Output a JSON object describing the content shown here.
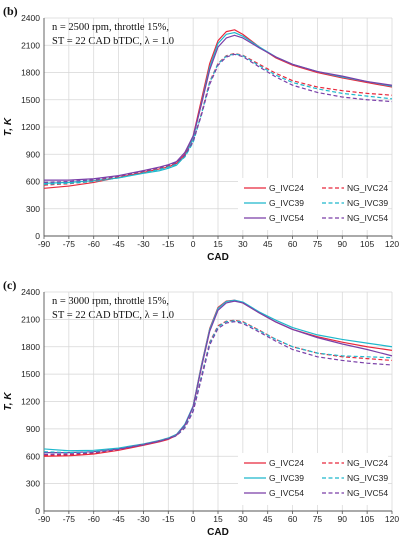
{
  "chart_data": [
    {
      "type": "line",
      "panel_label": "(b)",
      "info_lines": [
        "n = 2500 rpm, throttle 15%,",
        "ST = 22 CAD bTDC, λ = 1.0"
      ],
      "info_italic_prefix": "n",
      "info_lambda_symbol": "λ",
      "xlabel": "CAD",
      "ylabel": "T, K",
      "xlim": [
        -90,
        120
      ],
      "ylim": [
        0,
        2400
      ],
      "xticks": [
        -90,
        -75,
        -60,
        -45,
        -30,
        -15,
        0,
        15,
        30,
        45,
        60,
        75,
        90,
        105,
        120
      ],
      "yticks": [
        0,
        300,
        600,
        900,
        1200,
        1500,
        1800,
        2100,
        2400
      ],
      "grid": true,
      "legend_position": "bottom-right",
      "series": [
        {
          "name": "G_IVC24",
          "color": "#e8283c",
          "dash": "solid",
          "x": [
            -90,
            -75,
            -60,
            -45,
            -30,
            -20,
            -15,
            -10,
            -5,
            0,
            5,
            10,
            15,
            20,
            25,
            30,
            40,
            50,
            60,
            75,
            90,
            105,
            120
          ],
          "y": [
            525,
            550,
            590,
            645,
            700,
            740,
            760,
            800,
            900,
            1100,
            1500,
            1900,
            2150,
            2250,
            2270,
            2220,
            2080,
            1960,
            1880,
            1800,
            1740,
            1690,
            1640
          ]
        },
        {
          "name": "G_IVC39",
          "color": "#1fb8cc",
          "dash": "solid",
          "x": [
            -90,
            -75,
            -60,
            -45,
            -30,
            -20,
            -15,
            -10,
            -5,
            0,
            5,
            10,
            15,
            20,
            25,
            30,
            40,
            50,
            60,
            75,
            90,
            105,
            120
          ],
          "y": [
            580,
            590,
            610,
            640,
            690,
            720,
            745,
            780,
            880,
            1070,
            1460,
            1860,
            2120,
            2220,
            2240,
            2200,
            2080,
            1970,
            1890,
            1810,
            1750,
            1700,
            1650
          ]
        },
        {
          "name": "G_IVC54",
          "color": "#7a3fa8",
          "dash": "solid",
          "x": [
            -90,
            -75,
            -60,
            -45,
            -30,
            -20,
            -15,
            -10,
            -5,
            0,
            5,
            10,
            15,
            20,
            25,
            30,
            40,
            50,
            60,
            75,
            90,
            105,
            120
          ],
          "y": [
            615,
            615,
            630,
            665,
            720,
            760,
            785,
            820,
            920,
            1100,
            1450,
            1830,
            2080,
            2180,
            2210,
            2180,
            2070,
            1970,
            1890,
            1810,
            1760,
            1700,
            1660
          ]
        },
        {
          "name": "NG_IVC24",
          "color": "#e8283c",
          "dash": "dashed",
          "x": [
            -90,
            -75,
            -60,
            -45,
            -30,
            -20,
            -15,
            -10,
            -5,
            0,
            5,
            10,
            15,
            20,
            25,
            30,
            40,
            50,
            60,
            75,
            90,
            105,
            120
          ],
          "y": [
            560,
            575,
            605,
            650,
            705,
            745,
            770,
            800,
            880,
            1040,
            1350,
            1700,
            1900,
            1985,
            2010,
            1990,
            1890,
            1790,
            1710,
            1640,
            1600,
            1570,
            1550
          ]
        },
        {
          "name": "NG_IVC39",
          "color": "#1fb8cc",
          "dash": "dashed",
          "x": [
            -90,
            -75,
            -60,
            -45,
            -30,
            -20,
            -15,
            -10,
            -5,
            0,
            5,
            10,
            15,
            20,
            25,
            30,
            40,
            50,
            60,
            75,
            90,
            105,
            120
          ],
          "y": [
            570,
            580,
            600,
            640,
            695,
            735,
            760,
            790,
            870,
            1030,
            1340,
            1690,
            1895,
            1980,
            2005,
            1985,
            1875,
            1770,
            1690,
            1620,
            1570,
            1540,
            1510
          ]
        },
        {
          "name": "NG_IVC54",
          "color": "#7a3fa8",
          "dash": "dashed",
          "x": [
            -90,
            -75,
            -60,
            -45,
            -30,
            -20,
            -15,
            -10,
            -5,
            0,
            5,
            10,
            15,
            20,
            25,
            30,
            40,
            50,
            60,
            75,
            90,
            105,
            120
          ],
          "y": [
            590,
            600,
            620,
            660,
            715,
            755,
            780,
            810,
            890,
            1040,
            1330,
            1670,
            1880,
            1970,
            2000,
            1975,
            1860,
            1750,
            1660,
            1580,
            1530,
            1500,
            1480
          ]
        }
      ]
    },
    {
      "type": "line",
      "panel_label": "(c)",
      "info_lines": [
        "n = 3000 rpm, throttle 15%,",
        "ST = 22 CAD bTDC, λ = 1.0"
      ],
      "info_italic_prefix": "n",
      "info_lambda_symbol": "λ",
      "xlabel": "CAD",
      "ylabel": "T, K",
      "xlim": [
        -90,
        120
      ],
      "ylim": [
        0,
        2400
      ],
      "xticks": [
        -90,
        -75,
        -60,
        -45,
        -30,
        -15,
        0,
        15,
        30,
        45,
        60,
        75,
        90,
        105,
        120
      ],
      "yticks": [
        0,
        300,
        600,
        900,
        1200,
        1500,
        1800,
        2100,
        2400
      ],
      "grid": true,
      "legend_position": "bottom-right",
      "series": [
        {
          "name": "G_IVC24",
          "color": "#e8283c",
          "dash": "solid",
          "x": [
            -90,
            -75,
            -60,
            -45,
            -30,
            -20,
            -15,
            -10,
            -5,
            0,
            5,
            10,
            15,
            20,
            25,
            30,
            40,
            50,
            60,
            75,
            90,
            105,
            120
          ],
          "y": [
            600,
            605,
            625,
            665,
            720,
            760,
            785,
            830,
            940,
            1150,
            1600,
            2000,
            2230,
            2300,
            2310,
            2280,
            2170,
            2070,
            1990,
            1910,
            1850,
            1800,
            1760
          ]
        },
        {
          "name": "G_IVC39",
          "color": "#1fb8cc",
          "dash": "solid",
          "x": [
            -90,
            -75,
            -60,
            -45,
            -30,
            -20,
            -15,
            -10,
            -5,
            0,
            5,
            10,
            15,
            20,
            25,
            30,
            40,
            50,
            60,
            75,
            90,
            105,
            120
          ],
          "y": [
            680,
            660,
            665,
            690,
            735,
            775,
            800,
            840,
            950,
            1150,
            1590,
            1990,
            2220,
            2295,
            2310,
            2290,
            2180,
            2090,
            2010,
            1930,
            1880,
            1840,
            1800
          ]
        },
        {
          "name": "G_IVC54",
          "color": "#7a3fa8",
          "dash": "solid",
          "x": [
            -90,
            -75,
            -60,
            -45,
            -30,
            -20,
            -15,
            -10,
            -5,
            0,
            5,
            10,
            15,
            20,
            25,
            30,
            40,
            50,
            60,
            75,
            90,
            105,
            120
          ],
          "y": [
            640,
            640,
            650,
            680,
            730,
            770,
            795,
            835,
            940,
            1140,
            1570,
            1970,
            2200,
            2280,
            2300,
            2280,
            2170,
            2070,
            1990,
            1900,
            1830,
            1770,
            1700
          ]
        },
        {
          "name": "NG_IVC24",
          "color": "#e8283c",
          "dash": "dashed",
          "x": [
            -90,
            -75,
            -60,
            -45,
            -30,
            -20,
            -15,
            -10,
            -5,
            0,
            5,
            10,
            15,
            20,
            25,
            30,
            40,
            50,
            60,
            75,
            90,
            105,
            120
          ],
          "y": [
            610,
            615,
            635,
            675,
            730,
            770,
            795,
            830,
            920,
            1100,
            1480,
            1850,
            2030,
            2080,
            2090,
            2075,
            1980,
            1880,
            1800,
            1730,
            1690,
            1670,
            1650
          ]
        },
        {
          "name": "NG_IVC39",
          "color": "#1fb8cc",
          "dash": "dashed",
          "x": [
            -90,
            -75,
            -60,
            -45,
            -30,
            -20,
            -15,
            -10,
            -5,
            0,
            5,
            10,
            15,
            20,
            25,
            30,
            40,
            50,
            60,
            75,
            90,
            105,
            120
          ],
          "y": [
            650,
            640,
            650,
            680,
            730,
            770,
            795,
            830,
            920,
            1100,
            1470,
            1840,
            2020,
            2075,
            2085,
            2070,
            1975,
            1880,
            1800,
            1730,
            1700,
            1690,
            1680
          ]
        },
        {
          "name": "NG_IVC54",
          "color": "#7a3fa8",
          "dash": "dashed",
          "x": [
            -90,
            -75,
            -60,
            -45,
            -30,
            -20,
            -15,
            -10,
            -5,
            0,
            5,
            10,
            15,
            20,
            25,
            30,
            40,
            50,
            60,
            75,
            90,
            105,
            120
          ],
          "y": [
            620,
            625,
            640,
            675,
            725,
            765,
            790,
            825,
            910,
            1090,
            1450,
            1820,
            2000,
            2060,
            2075,
            2055,
            1960,
            1860,
            1770,
            1690,
            1650,
            1620,
            1600
          ]
        }
      ]
    }
  ]
}
